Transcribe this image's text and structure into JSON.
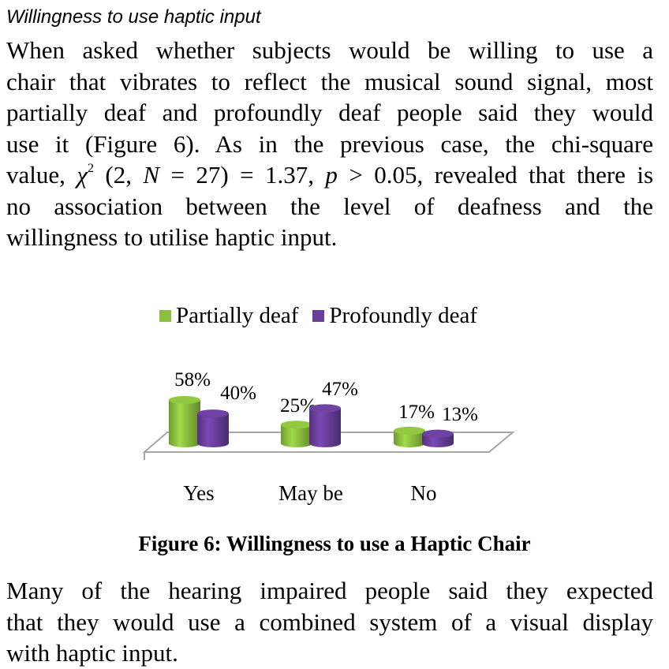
{
  "heading": "Willingness to use haptic input",
  "paragraph1": {
    "line1": "When asked whether subjects would be willing to use a",
    "line2": "chair that vibrates to reflect the musical sound signal, most",
    "line3": "partially deaf and profoundly deaf people said they would",
    "line4": "use it (Figure 6). As in the previous case, the chi-square",
    "line5_pre": "value,",
    "line5_math": "χ2 (2, N = 27) = 1.37, p > 0.05",
    "line5_post": ", revealed that there is",
    "line6": "no association between the level of deafness and the",
    "line7": "willingness to utilise haptic input."
  },
  "chart_data": {
    "type": "bar",
    "categories": [
      "Yes",
      "May be",
      "No"
    ],
    "series": [
      {
        "name": "Partially deaf",
        "values": [
          58,
          25,
          17
        ],
        "labels": [
          "58%",
          "25%",
          "17%"
        ],
        "color": "#8cbf3e"
      },
      {
        "name": "Profoundly deaf",
        "values": [
          40,
          47,
          13
        ],
        "labels": [
          "40%",
          "47%",
          "13%"
        ],
        "color": "#6a3f9c"
      }
    ],
    "legend_position": "top",
    "grid": false,
    "style": "3d-cylinder"
  },
  "caption": "Figure 6: Willingness to use a Haptic Chair",
  "paragraph2": {
    "line1": "Many of the hearing impaired people said they expected",
    "line2": "that they would use a combined system of a visual display",
    "line3": "with haptic input."
  }
}
